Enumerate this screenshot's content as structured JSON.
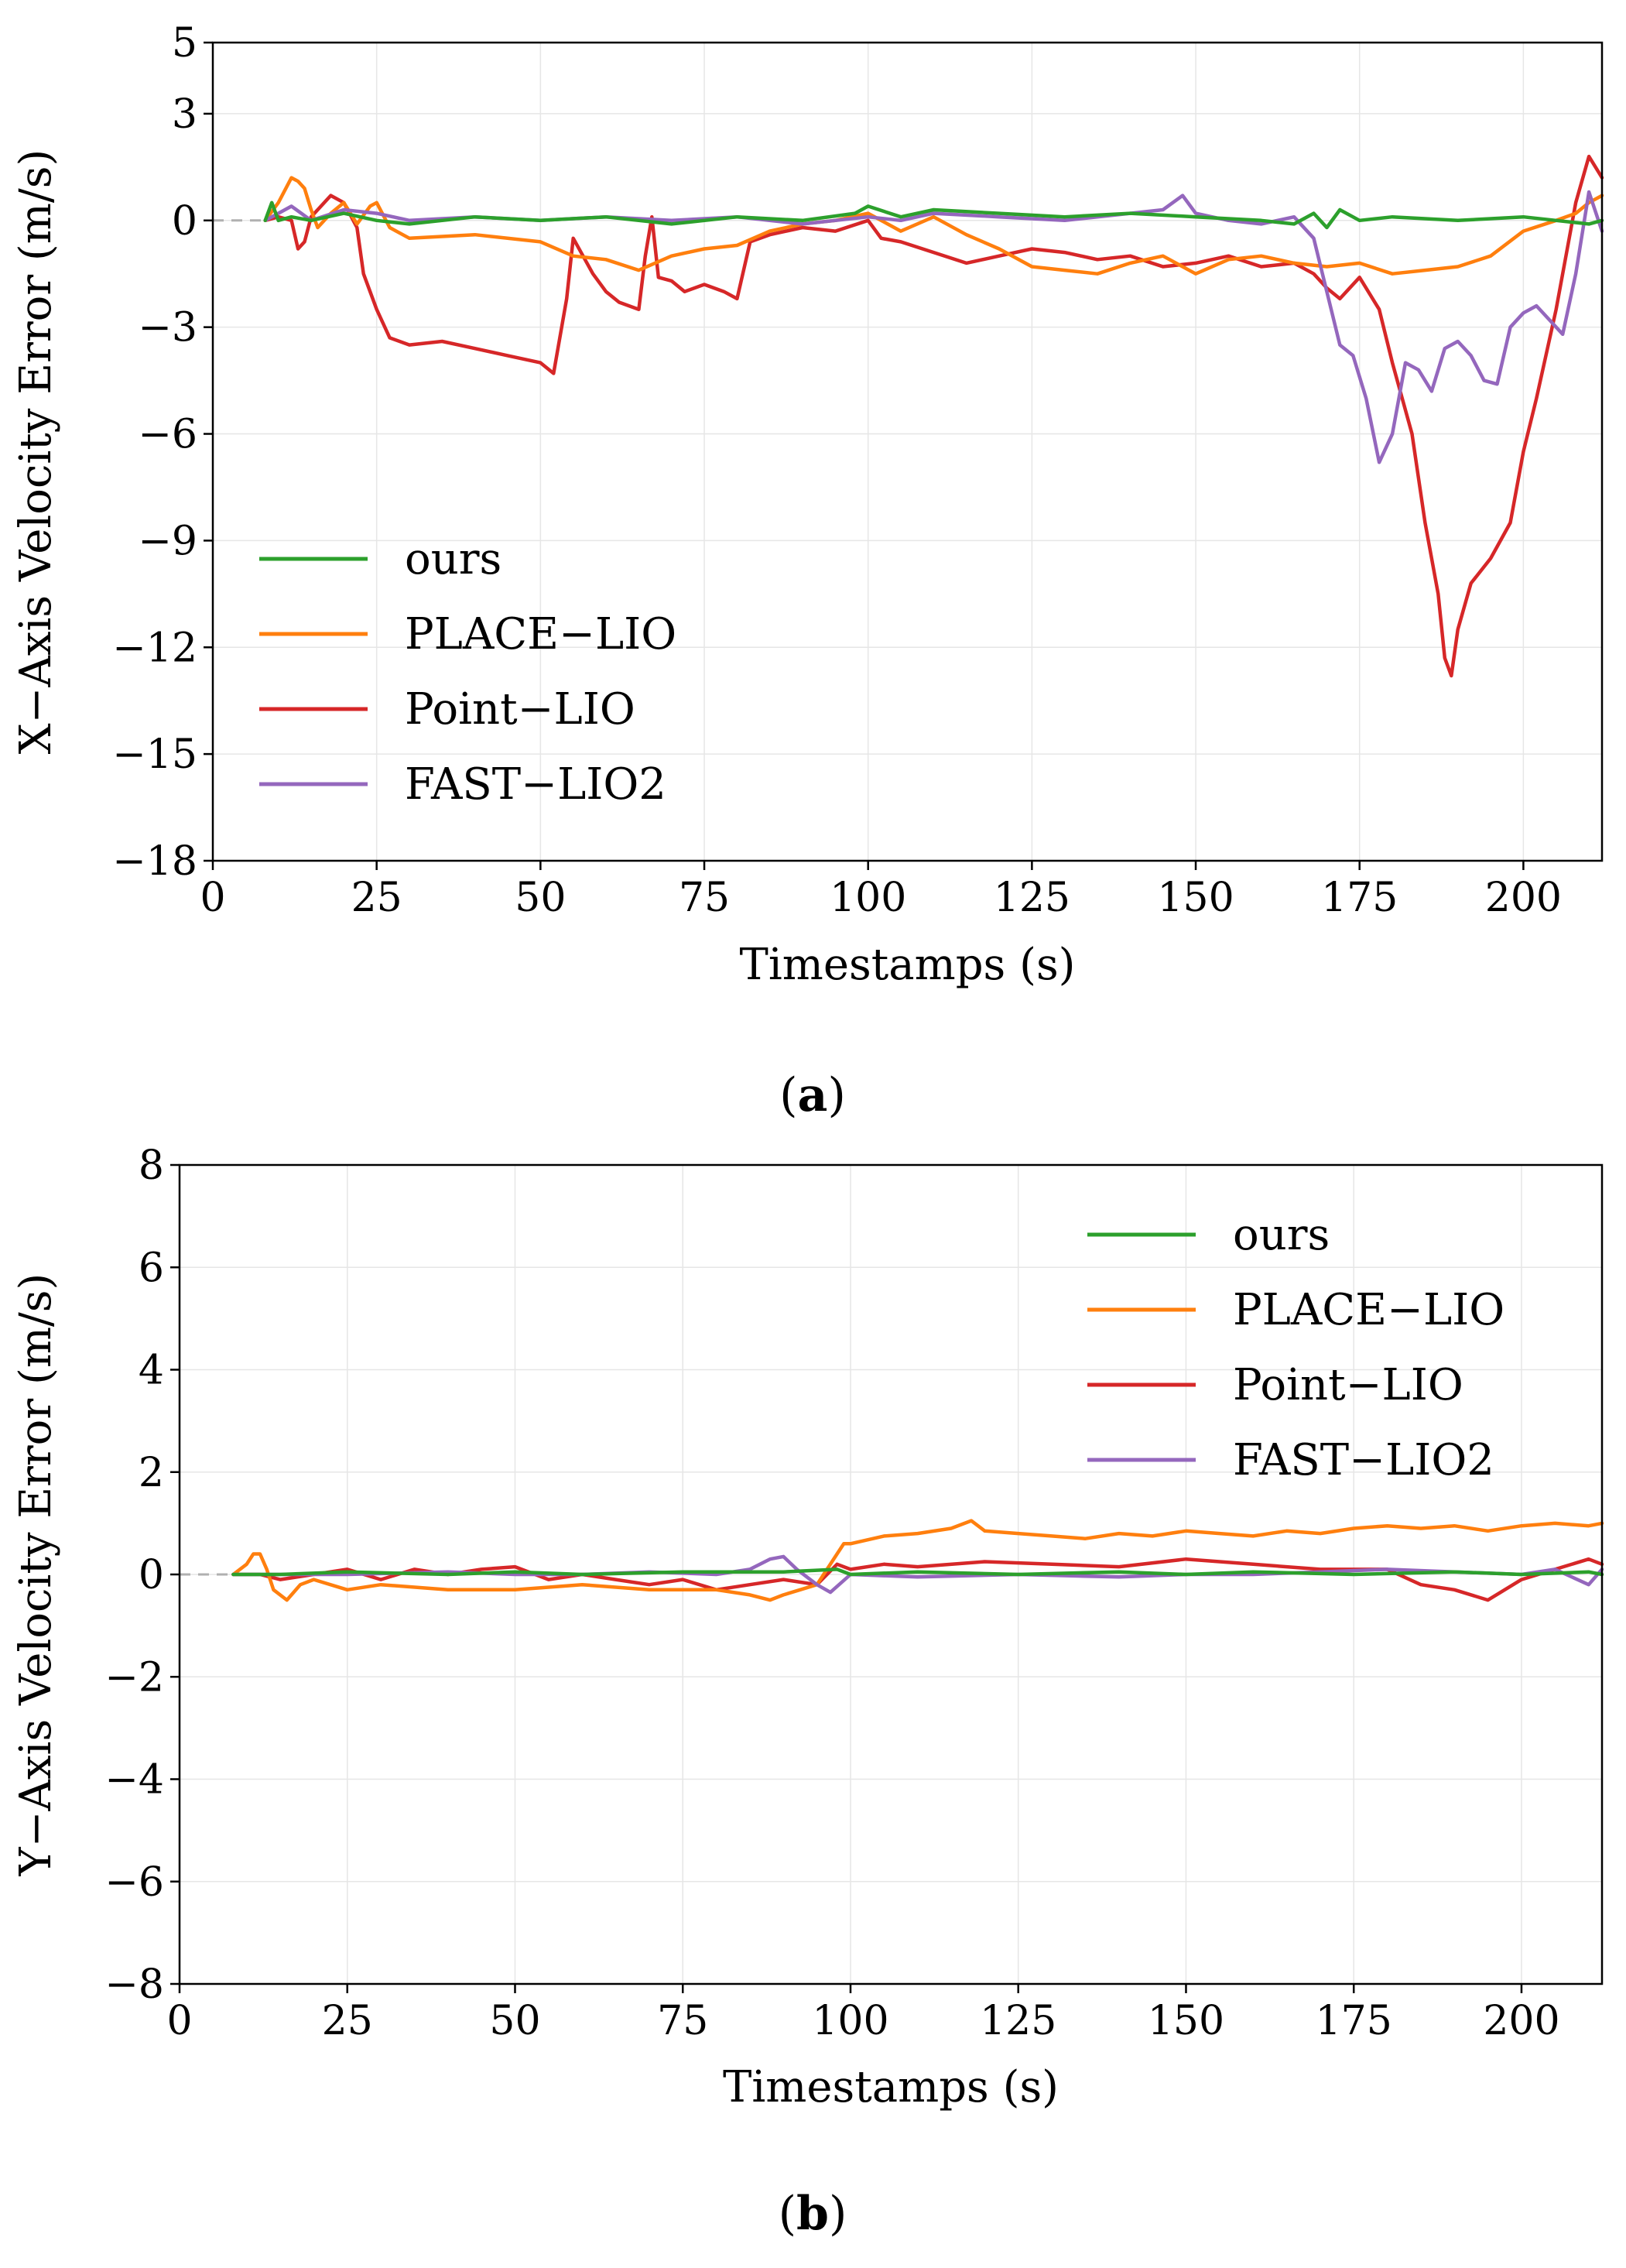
{
  "chart_data": [
    {
      "id": "a",
      "type": "line",
      "caption": "a",
      "title": "",
      "xlabel": "Timestamps (s)",
      "ylabel": "X−Axis Velocity Error (m/s)",
      "xlim": [
        0,
        212
      ],
      "ylim": [
        -18,
        5
      ],
      "xticks": [
        0,
        25,
        50,
        75,
        100,
        125,
        150,
        175,
        200
      ],
      "yticks": [
        5,
        3,
        0,
        -3,
        -6,
        -9,
        -12,
        -15,
        -18
      ],
      "grid": true,
      "legend_position": "lower-left",
      "series": [
        {
          "name": "ours",
          "color": "#2ca02c",
          "x": [
            8,
            9,
            10,
            12,
            15,
            20,
            25,
            30,
            40,
            50,
            60,
            70,
            80,
            90,
            98,
            100,
            105,
            110,
            120,
            130,
            140,
            150,
            160,
            165,
            168,
            170,
            172,
            175,
            180,
            190,
            200,
            205,
            210,
            212
          ],
          "y": [
            0,
            0.5,
            0,
            0.1,
            0,
            0.2,
            0,
            -0.1,
            0.1,
            0,
            0.1,
            -0.1,
            0.1,
            0,
            0.2,
            0.4,
            0.1,
            0.3,
            0.2,
            0.1,
            0.2,
            0.1,
            0,
            -0.1,
            0.2,
            -0.2,
            0.3,
            0,
            0.1,
            0,
            0.1,
            0,
            -0.1,
            0
          ]
        },
        {
          "name": "PLACE−LIO",
          "color": "#ff7f0e",
          "x": [
            8,
            10,
            12,
            13,
            14,
            15,
            16,
            18,
            20,
            22,
            24,
            25,
            27,
            30,
            40,
            50,
            55,
            60,
            65,
            70,
            75,
            80,
            85,
            90,
            95,
            100,
            105,
            110,
            115,
            120,
            125,
            130,
            135,
            140,
            145,
            150,
            155,
            160,
            165,
            170,
            175,
            180,
            185,
            190,
            195,
            200,
            205,
            208,
            210,
            212
          ],
          "y": [
            0,
            0.5,
            1.2,
            1.1,
            0.9,
            0.3,
            -0.2,
            0.2,
            0.5,
            -0.1,
            0.4,
            0.5,
            -0.2,
            -0.5,
            -0.4,
            -0.6,
            -1.0,
            -1.1,
            -1.4,
            -1.0,
            -0.8,
            -0.7,
            -0.3,
            -0.1,
            0,
            0.2,
            -0.3,
            0.1,
            -0.4,
            -0.8,
            -1.3,
            -1.4,
            -1.5,
            -1.2,
            -1.0,
            -1.5,
            -1.1,
            -1.0,
            -1.2,
            -1.3,
            -1.2,
            -1.5,
            -1.4,
            -1.3,
            -1.0,
            -0.3,
            0,
            0.2,
            0.5,
            0.7
          ]
        },
        {
          "name": "Point−LIO",
          "color": "#d62728",
          "x": [
            8,
            10,
            12,
            13,
            14,
            15,
            16,
            18,
            20,
            22,
            23,
            24,
            25,
            27,
            30,
            35,
            40,
            45,
            50,
            52,
            54,
            55,
            58,
            60,
            62,
            65,
            66,
            67,
            68,
            70,
            72,
            75,
            78,
            80,
            82,
            85,
            90,
            95,
            100,
            102,
            105,
            110,
            115,
            120,
            125,
            130,
            135,
            140,
            145,
            150,
            155,
            160,
            165,
            168,
            170,
            172,
            175,
            178,
            180,
            183,
            185,
            187,
            188,
            189,
            190,
            192,
            195,
            198,
            200,
            202,
            205,
            208,
            210,
            212
          ],
          "y": [
            0,
            0.1,
            0,
            -0.8,
            -0.6,
            0.1,
            0.3,
            0.7,
            0.5,
            -0.2,
            -1.5,
            -2.0,
            -2.5,
            -3.3,
            -3.5,
            -3.4,
            -3.6,
            -3.8,
            -4.0,
            -4.3,
            -2.2,
            -0.5,
            -1.5,
            -2.0,
            -2.3,
            -2.5,
            -1.0,
            0.1,
            -1.6,
            -1.7,
            -2.0,
            -1.8,
            -2.0,
            -2.2,
            -0.6,
            -0.4,
            -0.2,
            -0.3,
            0,
            -0.5,
            -0.6,
            -0.9,
            -1.2,
            -1.0,
            -0.8,
            -0.9,
            -1.1,
            -1.0,
            -1.3,
            -1.2,
            -1.0,
            -1.3,
            -1.2,
            -1.5,
            -1.9,
            -2.2,
            -1.6,
            -2.5,
            -4.0,
            -6.0,
            -8.5,
            -10.5,
            -12.3,
            -12.8,
            -11.5,
            -10.2,
            -9.5,
            -8.5,
            -6.5,
            -5.0,
            -2.5,
            0.5,
            1.8,
            1.2
          ]
        },
        {
          "name": "FAST−LIO2",
          "color": "#9467bd",
          "x": [
            8,
            10,
            12,
            15,
            20,
            25,
            30,
            40,
            50,
            60,
            70,
            80,
            90,
            95,
            100,
            105,
            110,
            120,
            130,
            140,
            145,
            148,
            150,
            155,
            160,
            165,
            168,
            170,
            172,
            174,
            176,
            178,
            180,
            182,
            184,
            186,
            188,
            190,
            192,
            194,
            196,
            198,
            200,
            202,
            204,
            206,
            208,
            210,
            212
          ],
          "y": [
            0,
            0.2,
            0.4,
            0,
            0.3,
            0.2,
            0,
            0.1,
            0,
            0.1,
            0,
            0.1,
            -0.1,
            0,
            0.1,
            0,
            0.2,
            0.1,
            0,
            0.2,
            0.3,
            0.7,
            0.2,
            0,
            -0.1,
            0.1,
            -0.5,
            -2.0,
            -3.5,
            -3.8,
            -5.0,
            -6.8,
            -6.0,
            -4.0,
            -4.2,
            -4.8,
            -3.6,
            -3.4,
            -3.8,
            -4.5,
            -4.6,
            -3.0,
            -2.6,
            -2.4,
            -2.8,
            -3.2,
            -1.5,
            0.8,
            -0.3
          ]
        }
      ]
    },
    {
      "id": "b",
      "type": "line",
      "caption": "b",
      "title": "",
      "xlabel": "Timestamps (s)",
      "ylabel": "Y−Axis Velocity Error (m/s)",
      "xlim": [
        0,
        212
      ],
      "ylim": [
        -8,
        8
      ],
      "xticks": [
        0,
        25,
        50,
        75,
        100,
        125,
        150,
        175,
        200
      ],
      "yticks": [
        8,
        6,
        4,
        2,
        0,
        -2,
        -4,
        -6,
        -8
      ],
      "grid": true,
      "legend_position": "upper-right",
      "series": [
        {
          "name": "ours",
          "color": "#2ca02c",
          "x": [
            8,
            15,
            25,
            40,
            50,
            60,
            75,
            90,
            98,
            100,
            110,
            125,
            140,
            150,
            160,
            175,
            190,
            200,
            210,
            212
          ],
          "y": [
            0,
            0,
            0.05,
            0,
            0.05,
            0,
            0.05,
            0.05,
            0.1,
            0,
            0.05,
            0,
            0.05,
            0,
            0.05,
            0,
            0.05,
            0,
            0.05,
            0
          ]
        },
        {
          "name": "PLACE−LIO",
          "color": "#ff7f0e",
          "x": [
            8,
            10,
            11,
            12,
            13,
            14,
            16,
            18,
            20,
            25,
            30,
            40,
            50,
            60,
            70,
            80,
            85,
            88,
            90,
            95,
            98,
            99,
            100,
            105,
            110,
            115,
            118,
            120,
            125,
            130,
            135,
            140,
            145,
            150,
            155,
            160,
            165,
            170,
            175,
            180,
            185,
            190,
            195,
            200,
            205,
            210,
            212
          ],
          "y": [
            0,
            0.2,
            0.4,
            0.4,
            0.1,
            -0.3,
            -0.5,
            -0.2,
            -0.1,
            -0.3,
            -0.2,
            -0.3,
            -0.3,
            -0.2,
            -0.3,
            -0.3,
            -0.4,
            -0.5,
            -0.4,
            -0.2,
            0.4,
            0.6,
            0.6,
            0.75,
            0.8,
            0.9,
            1.05,
            0.85,
            0.8,
            0.75,
            0.7,
            0.8,
            0.75,
            0.85,
            0.8,
            0.75,
            0.85,
            0.8,
            0.9,
            0.95,
            0.9,
            0.95,
            0.85,
            0.95,
            1.0,
            0.95,
            1.0
          ]
        },
        {
          "name": "Point−LIO",
          "color": "#d62728",
          "x": [
            8,
            12,
            15,
            20,
            25,
            30,
            35,
            40,
            45,
            50,
            55,
            60,
            65,
            70,
            75,
            80,
            85,
            90,
            95,
            98,
            100,
            105,
            110,
            120,
            130,
            140,
            150,
            160,
            170,
            180,
            185,
            190,
            195,
            200,
            205,
            210,
            212
          ],
          "y": [
            0,
            0,
            -0.1,
            0,
            0.1,
            -0.1,
            0.1,
            0,
            0.1,
            0.15,
            -0.1,
            0,
            -0.1,
            -0.2,
            -0.1,
            -0.3,
            -0.2,
            -0.1,
            -0.2,
            0.2,
            0.1,
            0.2,
            0.15,
            0.25,
            0.2,
            0.15,
            0.3,
            0.2,
            0.1,
            0.1,
            -0.2,
            -0.3,
            -0.5,
            -0.1,
            0.1,
            0.3,
            0.2
          ]
        },
        {
          "name": "FAST−LIO2",
          "color": "#9467bd",
          "x": [
            8,
            15,
            25,
            40,
            50,
            60,
            70,
            80,
            85,
            88,
            90,
            92,
            95,
            97,
            100,
            110,
            125,
            140,
            150,
            160,
            170,
            180,
            190,
            200,
            205,
            210,
            212
          ],
          "y": [
            0,
            0,
            0,
            0.05,
            0,
            0,
            0.05,
            0,
            0.1,
            0.3,
            0.35,
            0.1,
            -0.2,
            -0.35,
            0,
            -0.05,
            0,
            -0.05,
            0,
            0,
            0.05,
            0.1,
            0.05,
            0,
            0.1,
            -0.2,
            0.1
          ]
        }
      ]
    }
  ]
}
